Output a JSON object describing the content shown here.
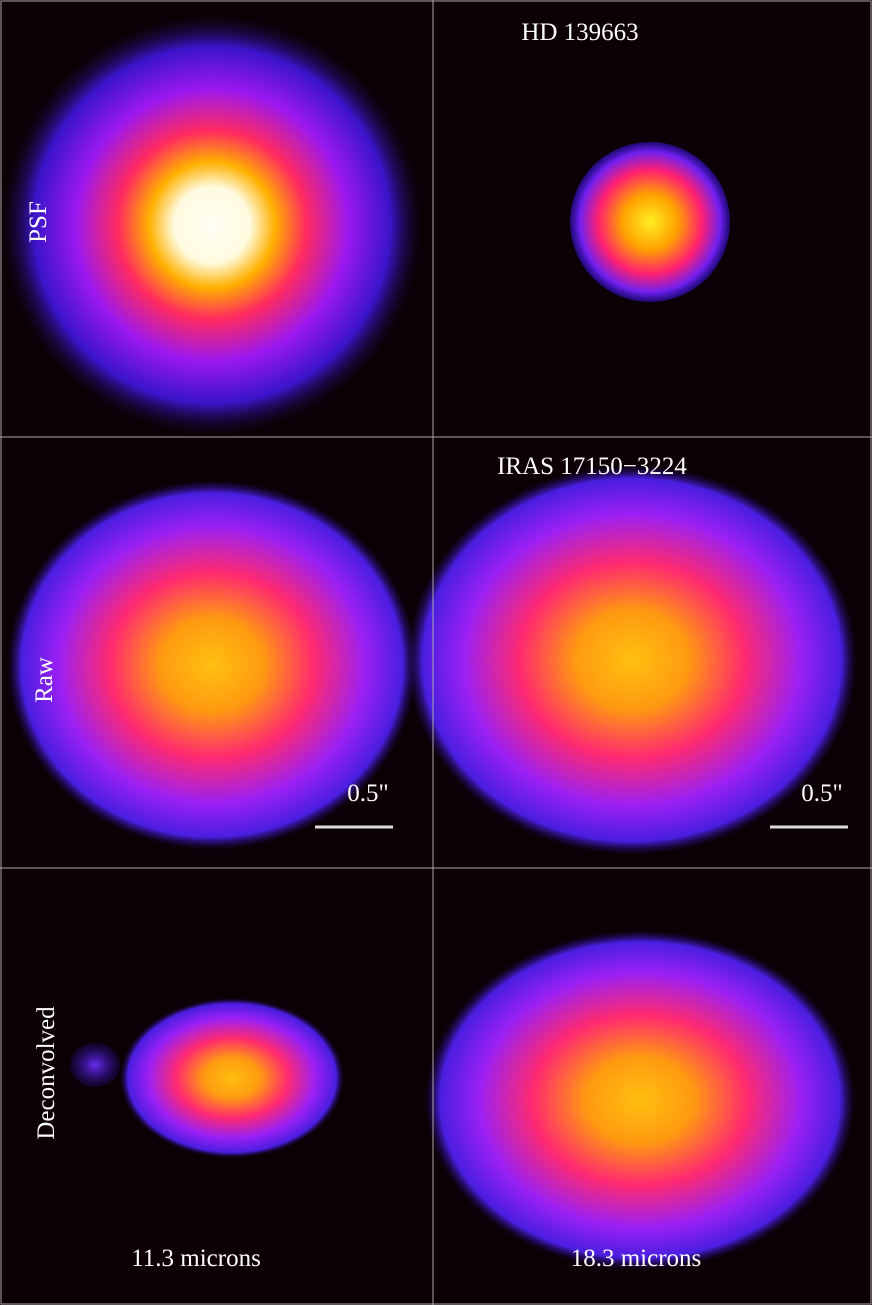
{
  "titles": [
    "HD 139663",
    "IRAS 17150−3224"
  ],
  "row_labels": [
    "PSF",
    "Raw",
    "Deconvolved"
  ],
  "wavelengths": [
    "11.3 microns",
    "18.3 microns"
  ],
  "scale_bars": [
    "0.5\"",
    "0.5\""
  ]
}
